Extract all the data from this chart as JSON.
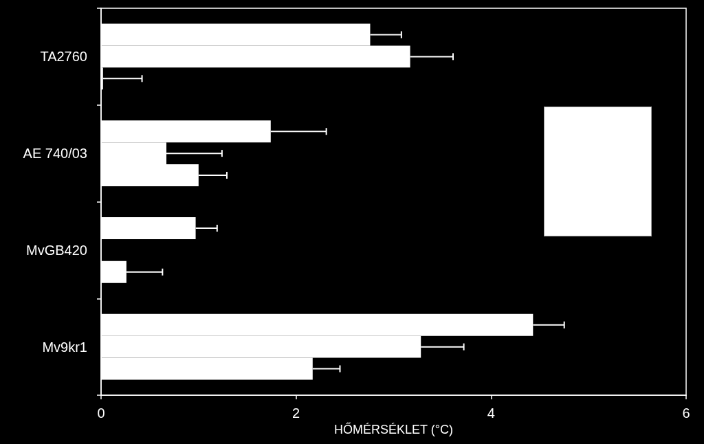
{
  "chart_data": {
    "type": "bar",
    "orientation": "horizontal",
    "xlabel": "HŐMÉRSÉKLET (°C)",
    "categories": [
      "TA2760",
      "AE 740/03",
      "MvGB420",
      "Mv9kr1"
    ],
    "series": [
      {
        "color": "#ffffff",
        "values": [
          2.76,
          1.74,
          0.97,
          4.43
        ],
        "errors": [
          [
            2.76,
            3.08
          ],
          [
            1.74,
            2.31
          ],
          [
            0.97,
            1.19
          ],
          [
            4.43,
            4.75
          ]
        ]
      },
      {
        "color": "#ffffff",
        "values": [
          3.17,
          0.67,
          null,
          3.28
        ],
        "errors": [
          [
            3.17,
            3.61
          ],
          [
            0.67,
            1.24
          ],
          null,
          [
            3.28,
            3.72
          ]
        ]
      },
      {
        "color": "#ffffff",
        "values": [
          0.02,
          1.0,
          0.26,
          2.17
        ],
        "errors": [
          [
            0.02,
            0.42
          ],
          [
            1.0,
            1.29
          ],
          [
            0.26,
            0.63
          ],
          [
            2.17,
            2.45
          ]
        ]
      }
    ],
    "xlim": [
      0,
      6
    ],
    "xticks": [
      0,
      2,
      4,
      6
    ]
  }
}
